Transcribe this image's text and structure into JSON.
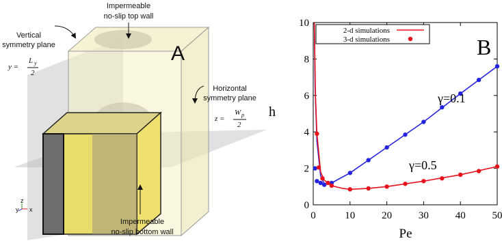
{
  "diagram": {
    "panel_label": "A",
    "top_wall": [
      "Impermeable",
      "no-slip top wall"
    ],
    "vertical_plane": [
      "Vertical",
      "symmetry plane"
    ],
    "vertical_eq": {
      "lhs": "y =",
      "num": "L",
      "num_sub": "y",
      "den": "2"
    },
    "horizontal_plane": [
      "Horizontal",
      "symmetry plane"
    ],
    "horizontal_eq": {
      "lhs": "z =",
      "num": "W",
      "num_sub": "p",
      "den": "2"
    },
    "bottom_wall": [
      "Impermeable",
      "no-slip bottom wall"
    ],
    "axes": {
      "y": "y",
      "z": "z",
      "x": "x"
    }
  },
  "chart_data": {
    "type": "line",
    "panel_label": "B",
    "x_label": "Pe",
    "y_label": "h",
    "xlim": [
      0,
      50
    ],
    "ylim": [
      0,
      10
    ],
    "xticks": [
      0,
      10,
      20,
      30,
      40,
      50
    ],
    "yticks": [
      0,
      2,
      4,
      6,
      8,
      10
    ],
    "legend_position": "upper left",
    "legend": [
      {
        "name": "2-d simulations",
        "color": "#e8121c",
        "marker": "line"
      },
      {
        "name": "3-d simulations",
        "color": "#e8121c",
        "marker": "point"
      }
    ],
    "series": [
      {
        "name": "γ=0.1",
        "color": "#2424e0",
        "line": {
          "x": [
            0.3,
            0.5,
            1,
            2,
            3,
            5,
            10,
            20,
            30,
            40,
            50
          ],
          "values": [
            10,
            6.5,
            3.5,
            1.6,
            1.15,
            1.2,
            1.75,
            3.15,
            4.55,
            6.1,
            7.6
          ]
        },
        "points": {
          "x": [
            0.5,
            1,
            2,
            3,
            5,
            10,
            15,
            20,
            25,
            30,
            35,
            40,
            45,
            50
          ],
          "values": [
            2.0,
            1.3,
            1.2,
            1.1,
            1.2,
            1.75,
            2.45,
            3.15,
            3.85,
            4.55,
            5.35,
            6.1,
            6.85,
            7.6
          ]
        }
      },
      {
        "name": "γ=0.5",
        "color": "#e8121c",
        "line": {
          "x": [
            0.3,
            0.6,
            1,
            2,
            3,
            5,
            8,
            10,
            15,
            20,
            30,
            40,
            50
          ],
          "values": [
            10,
            6,
            3.9,
            1.8,
            1.35,
            1.05,
            0.9,
            0.85,
            0.9,
            1.0,
            1.3,
            1.65,
            2.1
          ]
        },
        "points": {
          "x": [
            1,
            1.5,
            2.5,
            4,
            5,
            10,
            15,
            20,
            25,
            30,
            35,
            40,
            45,
            50
          ],
          "values": [
            3.9,
            2.05,
            1.45,
            1.2,
            1.05,
            0.85,
            0.9,
            1.0,
            1.15,
            1.3,
            1.45,
            1.65,
            1.85,
            2.1
          ]
        }
      }
    ]
  }
}
